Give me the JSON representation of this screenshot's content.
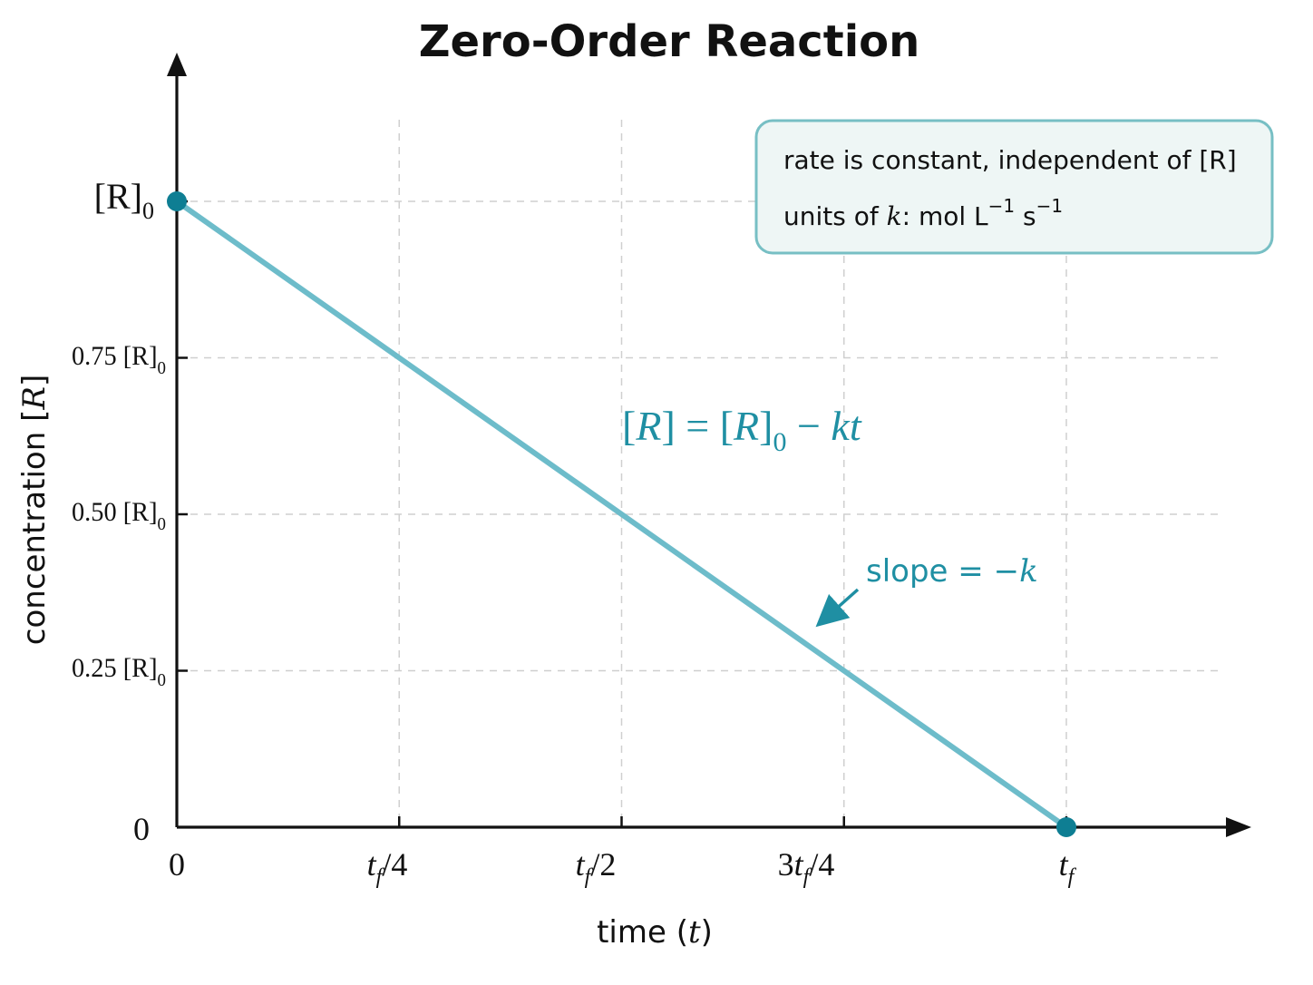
{
  "chart_data": {
    "type": "line",
    "title": "Zero-Order Reaction",
    "xlabel": "time (t)",
    "ylabel": "concentration [R]",
    "x_ticks": [
      "0",
      "t_f/4",
      "t_f/2",
      "3t_f/4",
      "t_f"
    ],
    "y_ticks": [
      "0",
      "0.25 [R]0",
      "0.50 [R]0",
      "0.75 [R]0",
      "[R]0"
    ],
    "x_tick_values": [
      0,
      0.25,
      0.5,
      0.75,
      1
    ],
    "y_tick_values": [
      0,
      0.25,
      0.5,
      0.75,
      1
    ],
    "xlim": [
      0,
      1.0
    ],
    "ylim": [
      0,
      1.0
    ],
    "grid": true,
    "series": [
      {
        "name": "",
        "x": [
          0,
          1
        ],
        "y": [
          1,
          0
        ],
        "color": "#6dbcca"
      }
    ],
    "endpoints": [
      {
        "x": 0,
        "y": 1,
        "color": "#0e7e93"
      },
      {
        "x": 1,
        "y": 0,
        "color": "#0e7e93"
      }
    ],
    "annotations": {
      "equation": "[R] = [R]0 − kt",
      "slope": "slope = −k",
      "box_line1": "rate is constant, independent of [R]",
      "box_line2": "units of k: mol L−1 s−1"
    },
    "colors": {
      "line": "#6dbcca",
      "point": "#0e7e93",
      "annotation_text": "#1f8fa3",
      "box_fill": "#eef6f5",
      "box_border": "#77bfc4"
    }
  }
}
